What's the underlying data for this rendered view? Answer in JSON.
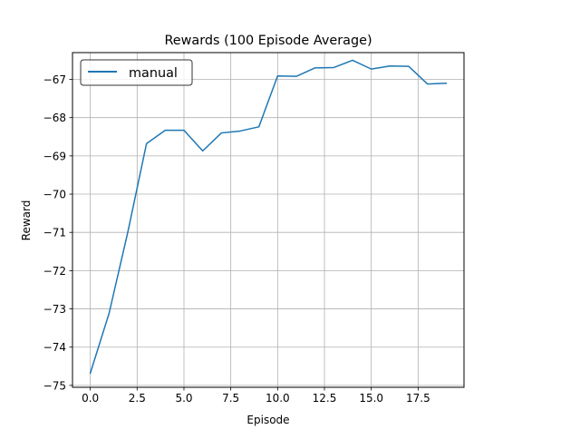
{
  "chart_data": {
    "type": "line",
    "title": "Rewards (100 Episode Average)",
    "xlabel": "Episode",
    "ylabel": "Reward",
    "xlim": [
      -0.95,
      19.95
    ],
    "ylim": [
      -75.05,
      -66.3
    ],
    "xticks": [
      0.0,
      2.5,
      5.0,
      7.5,
      10.0,
      12.5,
      15.0,
      17.5
    ],
    "xtick_labels": [
      "0.0",
      "2.5",
      "5.0",
      "7.5",
      "10.0",
      "12.5",
      "15.0",
      "17.5"
    ],
    "yticks": [
      -75,
      -74,
      -73,
      -72,
      -71,
      -70,
      -69,
      -68,
      -67
    ],
    "ytick_labels": [
      "−75",
      "−74",
      "−73",
      "−72",
      "−71",
      "−70",
      "−69",
      "−68",
      "−67"
    ],
    "grid": true,
    "legend_position": "upper-left",
    "series": [
      {
        "name": "manual",
        "color": "#1f77b4",
        "x": [
          0,
          1,
          2,
          3,
          4,
          5,
          6,
          7,
          8,
          9,
          10,
          11,
          12,
          13,
          14,
          15,
          16,
          17,
          18,
          19
        ],
        "values": [
          -74.68,
          -73.12,
          -71.0,
          -68.68,
          -68.33,
          -68.33,
          -68.87,
          -68.4,
          -68.35,
          -68.24,
          -66.91,
          -66.92,
          -66.7,
          -66.69,
          -66.5,
          -66.73,
          -66.65,
          -66.66,
          -67.12,
          -67.1
        ]
      }
    ]
  }
}
